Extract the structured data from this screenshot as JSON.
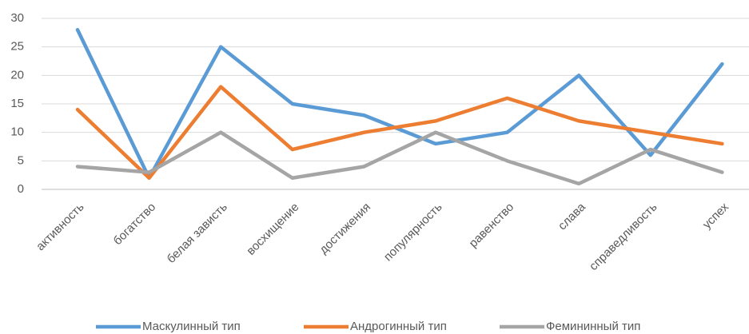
{
  "chart_data": {
    "type": "line",
    "categories": [
      "активность",
      "богатство",
      "белая зависть",
      "восхищение",
      "достижения",
      "популярность",
      "равенство",
      "слава",
      "справедливость",
      "успех"
    ],
    "series": [
      {
        "name": "Маскулинный тип",
        "color": "#5b9bd5",
        "values": [
          28,
          2,
          25,
          15,
          13,
          8,
          10,
          20,
          6,
          22
        ]
      },
      {
        "name": "Андрогинный тип",
        "color": "#ed7d31",
        "values": [
          14,
          2,
          18,
          7,
          10,
          12,
          16,
          12,
          10,
          8
        ]
      },
      {
        "name": "Фемининный тип",
        "color": "#a5a5a5",
        "values": [
          4,
          3,
          10,
          2,
          4,
          10,
          5,
          1,
          7,
          3
        ]
      }
    ],
    "ylim": [
      0,
      30
    ],
    "yticks": [
      0,
      5,
      10,
      15,
      20,
      25,
      30
    ],
    "grid": true,
    "legend": "bottom"
  }
}
